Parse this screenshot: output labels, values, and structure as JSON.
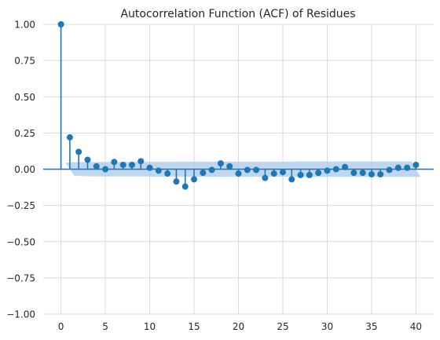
{
  "chart_data": {
    "type": "stem",
    "title": "Autocorrelation Function (ACF) of Residues",
    "xlabel": "",
    "ylabel": "",
    "xlim": [
      -2,
      42
    ],
    "ylim": [
      -1.0,
      1.0
    ],
    "xticks": [
      0,
      5,
      10,
      15,
      20,
      25,
      30,
      35,
      40
    ],
    "xtick_labels": [
      "0",
      "5",
      "10",
      "15",
      "20",
      "25",
      "30",
      "35",
      "40"
    ],
    "yticks": [
      1.0,
      0.75,
      0.5,
      0.25,
      0.0,
      -0.25,
      -0.5,
      -0.75,
      -1.0
    ],
    "ytick_labels": [
      "1.00",
      "0.75",
      "0.50",
      "0.25",
      "0.00",
      "−0.25",
      "−0.50",
      "−0.75",
      "−1.00"
    ],
    "grid": true,
    "lags": [
      0,
      1,
      2,
      3,
      4,
      5,
      6,
      7,
      8,
      9,
      10,
      11,
      12,
      13,
      14,
      15,
      16,
      17,
      18,
      19,
      20,
      21,
      22,
      23,
      24,
      25,
      26,
      27,
      28,
      29,
      30,
      31,
      32,
      33,
      34,
      35,
      36,
      37,
      38,
      39,
      40
    ],
    "values": [
      1.0,
      0.22,
      0.12,
      0.065,
      0.02,
      0.0,
      0.05,
      0.03,
      0.03,
      0.055,
      0.01,
      -0.01,
      -0.03,
      -0.085,
      -0.12,
      -0.07,
      -0.025,
      -0.005,
      0.04,
      0.02,
      -0.03,
      -0.005,
      -0.005,
      -0.06,
      -0.03,
      -0.02,
      -0.07,
      -0.04,
      -0.04,
      -0.025,
      -0.01,
      0.0,
      0.015,
      -0.025,
      -0.025,
      -0.035,
      -0.035,
      -0.005,
      0.01,
      0.01,
      0.03
    ],
    "confidence_band": {
      "lags": [
        1,
        2,
        3,
        4,
        5,
        6,
        7,
        8,
        9,
        10,
        11,
        12,
        13,
        14,
        15,
        16,
        17,
        18,
        19,
        20,
        21,
        22,
        23,
        24,
        25,
        26,
        27,
        28,
        29,
        30,
        31,
        32,
        33,
        34,
        35,
        36,
        37,
        38,
        39,
        40
      ],
      "upper": [
        0.045,
        0.048,
        0.049,
        0.05,
        0.05,
        0.05,
        0.05,
        0.05,
        0.05,
        0.051,
        0.051,
        0.051,
        0.051,
        0.052,
        0.052,
        0.052,
        0.052,
        0.052,
        0.052,
        0.052,
        0.052,
        0.052,
        0.052,
        0.052,
        0.052,
        0.052,
        0.053,
        0.053,
        0.053,
        0.053,
        0.053,
        0.053,
        0.053,
        0.053,
        0.053,
        0.053,
        0.053,
        0.053,
        0.053,
        0.053
      ]
    },
    "colors": {
      "stem": "#1f77b4",
      "band": "#a8c8e8",
      "grid": "#d9d9d9"
    }
  }
}
